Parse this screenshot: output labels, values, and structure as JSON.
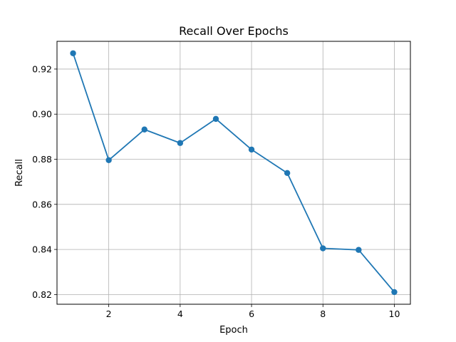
{
  "chart_data": {
    "type": "line",
    "title": "Recall Over Epochs",
    "xlabel": "Epoch",
    "ylabel": "Recall",
    "xlim": [
      0.55,
      10.45
    ],
    "ylim": [
      0.8157,
      0.9323
    ],
    "xticks": [
      2,
      4,
      6,
      8,
      10
    ],
    "yticks": [
      0.82,
      0.84,
      0.86,
      0.88,
      0.9,
      0.92
    ],
    "ytick_labels": [
      "0.82",
      "0.84",
      "0.86",
      "0.88",
      "0.90",
      "0.92"
    ],
    "grid": true,
    "series": [
      {
        "x": [
          1,
          2,
          3,
          4,
          5,
          6,
          7,
          8,
          9,
          10
        ],
        "values": [
          0.927,
          0.8796,
          0.8932,
          0.8872,
          0.8979,
          0.8843,
          0.8739,
          0.8405,
          0.8398,
          0.8211
        ],
        "color": "#1f77b4",
        "marker": "circle"
      }
    ]
  }
}
